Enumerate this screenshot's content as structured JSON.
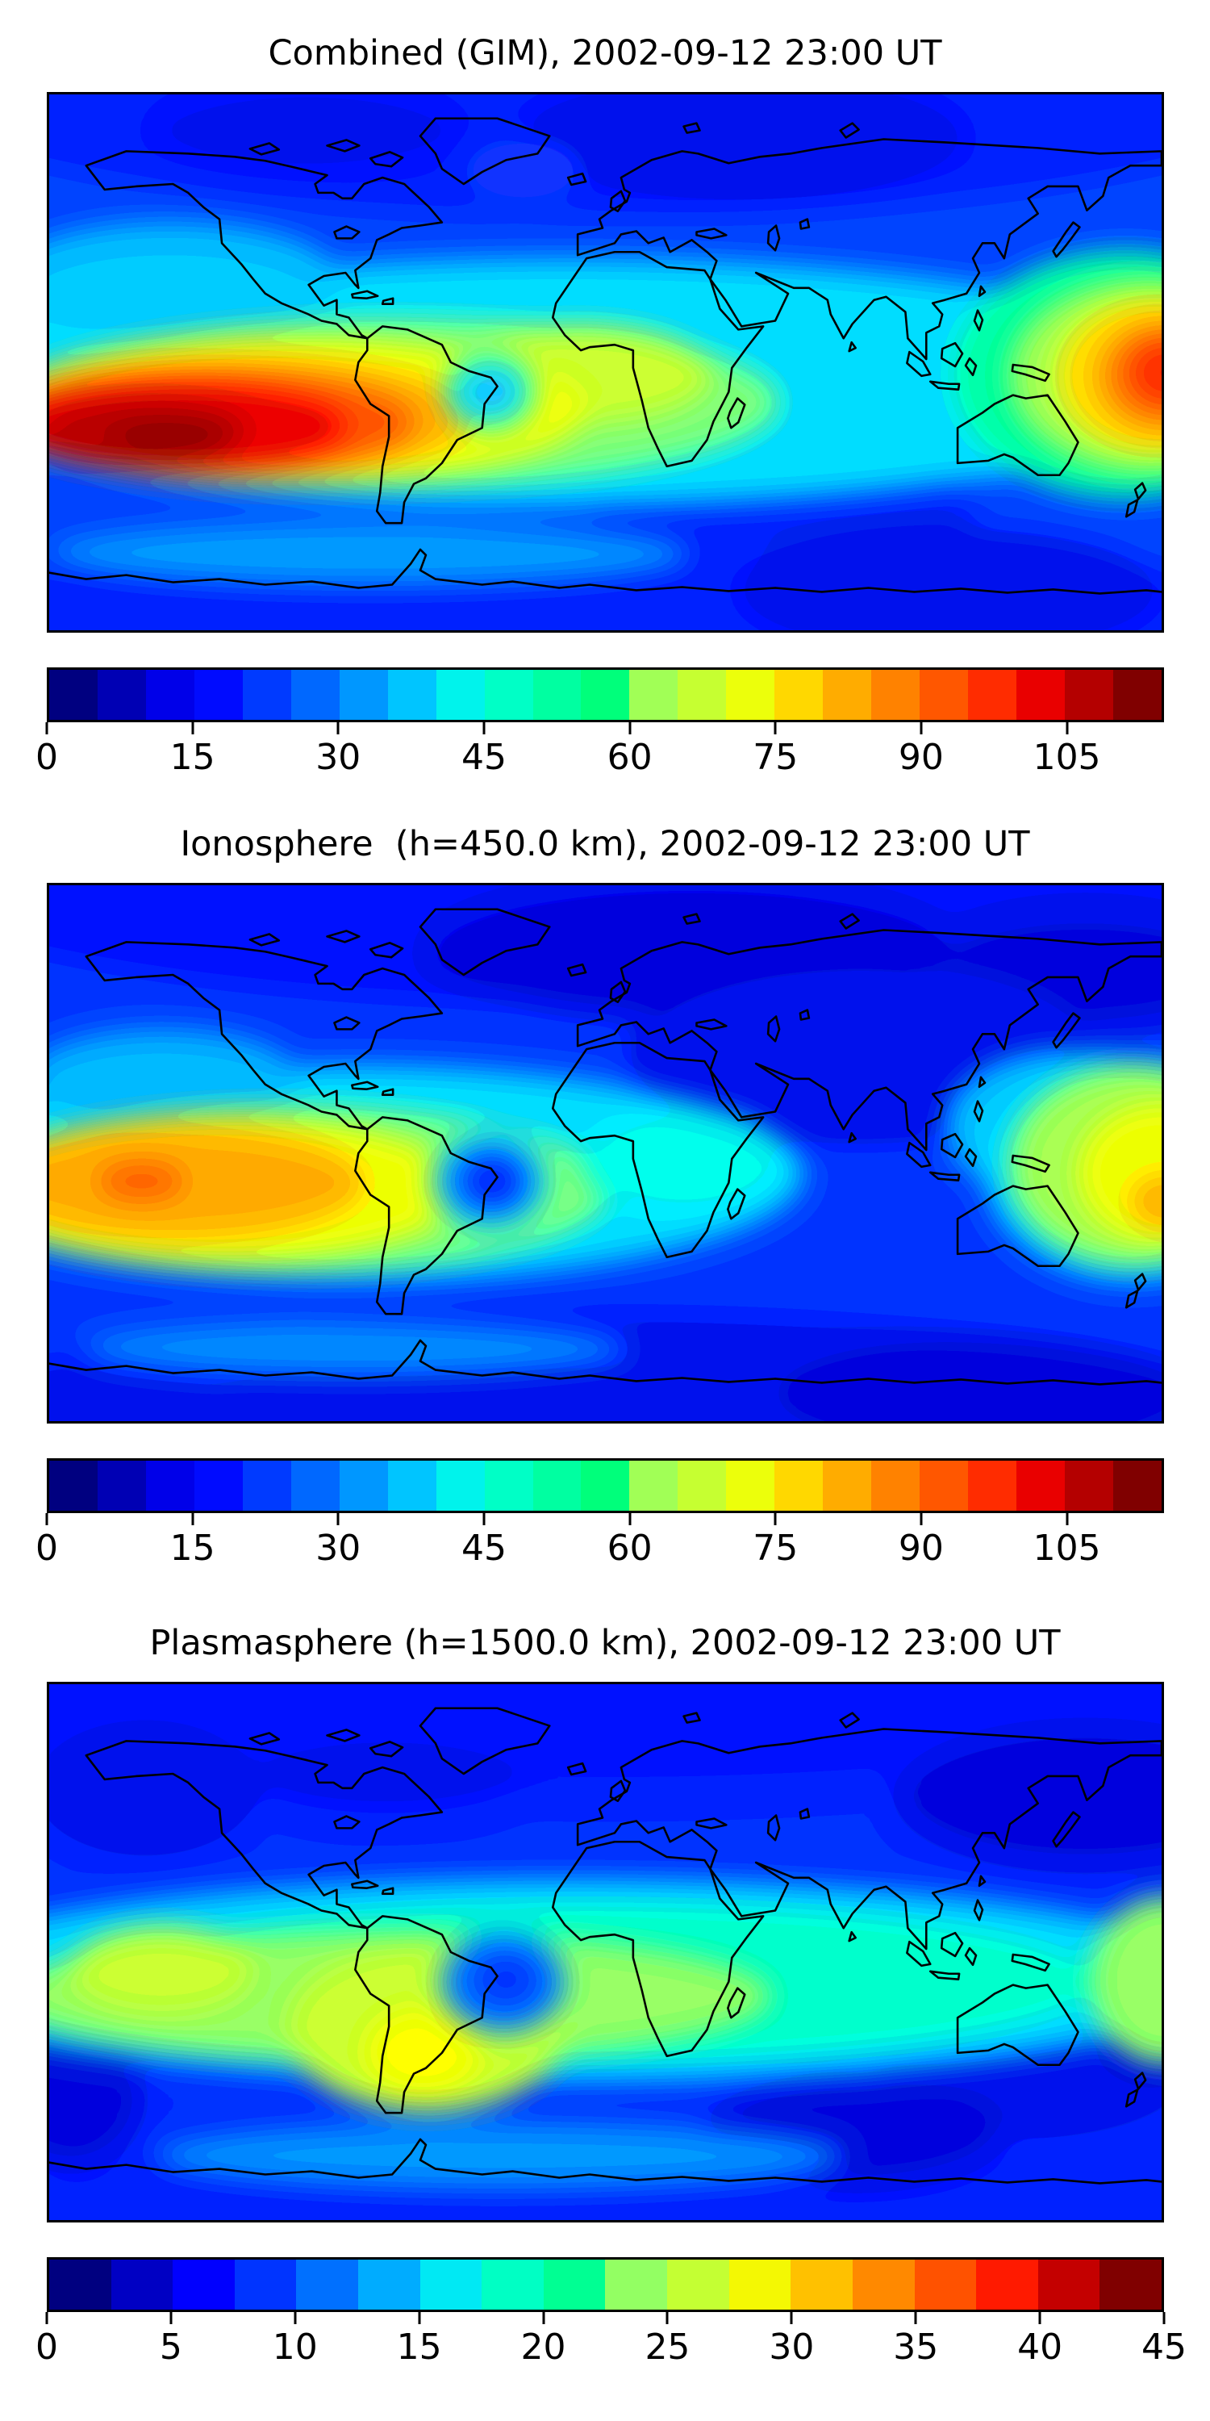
{
  "figure": {
    "background": "#ffffff",
    "description": "Three stacked global TEC contour maps (matplotlib-style) with jet colorbars"
  },
  "panels": [
    {
      "id": "combined",
      "title": "Combined (GIM), 2002-09-12 23:00 UT",
      "colorbar": {
        "vmin": 0,
        "vmax": 115,
        "tick_values": [
          0,
          15,
          30,
          45,
          60,
          75,
          90,
          105
        ],
        "tick_labels": [
          "0",
          "15",
          "30",
          "45",
          "60",
          "75",
          "90",
          "105"
        ],
        "colors": [
          "#000080",
          "#0000B4",
          "#0000E9",
          "#000BFF",
          "#003AFF",
          "#0068FF",
          "#0097FF",
          "#00C5FF",
          "#00F3EC",
          "#00FFC6",
          "#00FFA1",
          "#00FF7B",
          "#A1FF56",
          "#C6FF31",
          "#ECFF0B",
          "#FFD800",
          "#FFAC00",
          "#FF8200",
          "#FF5700",
          "#FF2C00",
          "#E90000",
          "#B40000",
          "#800000"
        ]
      }
    },
    {
      "id": "ionosphere",
      "title": "Ionosphere  (h=450.0 km), 2002-09-12 23:00 UT",
      "colorbar": {
        "vmin": 0,
        "vmax": 115,
        "tick_values": [
          0,
          15,
          30,
          45,
          60,
          75,
          90,
          105
        ],
        "tick_labels": [
          "0",
          "15",
          "30",
          "45",
          "60",
          "75",
          "90",
          "105"
        ],
        "colors": [
          "#000080",
          "#0000B4",
          "#0000E9",
          "#000BFF",
          "#003AFF",
          "#0068FF",
          "#0097FF",
          "#00C5FF",
          "#00F3EC",
          "#00FFC6",
          "#00FFA1",
          "#00FF7B",
          "#A1FF56",
          "#C6FF31",
          "#ECFF0B",
          "#FFD800",
          "#FFAC00",
          "#FF8200",
          "#FF5700",
          "#FF2C00",
          "#E90000",
          "#B40000",
          "#800000"
        ]
      }
    },
    {
      "id": "plasmasphere",
      "title": "Plasmasphere (h=1500.0 km), 2002-09-12 23:00 UT",
      "colorbar": {
        "vmin": 0,
        "vmax": 45,
        "tick_values": [
          0,
          5,
          10,
          15,
          20,
          25,
          30,
          35,
          40,
          45
        ],
        "tick_labels": [
          "0",
          "5",
          "10",
          "15",
          "20",
          "25",
          "30",
          "35",
          "40",
          "45"
        ],
        "colors": [
          "#000080",
          "#0000C4",
          "#0000FF",
          "#0034FF",
          "#0070FF",
          "#00ACFF",
          "#00E9F4",
          "#00FFC4",
          "#00FF93",
          "#93FF63",
          "#C4FF33",
          "#F4F803",
          "#FFC100",
          "#FF8900",
          "#FF5200",
          "#FF1A00",
          "#C40000",
          "#800000"
        ]
      }
    }
  ],
  "chart_data": [
    {
      "type": "heatmap",
      "title": "Combined (GIM), 2002-09-12 23:00 UT",
      "colormap": "jet",
      "projection": "equirectangular world map, lon -180..180, lat 90..-90, black coastlines overlaid, no axis ticks",
      "value_range": [
        0,
        115
      ],
      "contour_level_step": 5,
      "n_color_levels": 23,
      "colorbar_ticks": [
        0,
        15,
        30,
        45,
        60,
        75,
        90,
        105
      ],
      "features": [
        {
          "name": "primary maximum, eastern Pacific",
          "lon": -140,
          "lat": -22,
          "approx_value": 113
        },
        {
          "name": "secondary maximum, far western Pacific at map right edge",
          "lon": 178,
          "lat": -10,
          "approx_value": 95
        },
        {
          "name": "equatorial/low-latitude enhancement band",
          "lat_range": [
            -45,
            5
          ],
          "approx_value": "45-80"
        },
        {
          "name": "local green-yellow enhancement over equatorial Africa",
          "lon": -8,
          "lat": -3,
          "approx_value": 65
        },
        {
          "name": "localized cyan depletion spot near eastern Brazil",
          "lon": -38,
          "lat": -10,
          "approx_value": 38
        },
        {
          "name": "northern high-latitude minimum (dark blue band)",
          "lat_range": [
            50,
            90
          ],
          "approx_value": "5-18"
        },
        {
          "name": "southern high-latitude low band",
          "lat_range": [
            -90,
            -55
          ],
          "approx_value": "10-22"
        }
      ]
    },
    {
      "type": "heatmap",
      "title": "Ionosphere  (h=450.0 km), 2002-09-12 23:00 UT",
      "colormap": "jet",
      "projection": "equirectangular world map, lon -180..180, lat 90..-90, black coastlines overlaid, no axis ticks",
      "value_range": [
        0,
        115
      ],
      "contour_level_step": 5,
      "n_color_levels": 23,
      "colorbar_ticks": [
        0,
        15,
        30,
        45,
        60,
        75,
        90,
        105
      ],
      "features": [
        {
          "name": "primary maximum, eastern Pacific (orange plateau)",
          "lon": -150,
          "lat": -11,
          "approx_value": 88
        },
        {
          "name": "secondary yellow maximum at map right edge near New Guinea",
          "lon": 180,
          "lat": -8,
          "approx_value": 75
        },
        {
          "name": "deep blue depletion vortex near eastern Brazil",
          "lon": -38,
          "lat": -9,
          "approx_value": 15
        },
        {
          "name": "cyan patch over equatorial Africa",
          "lon": 25,
          "lat": -3,
          "approx_value": 45
        },
        {
          "name": "continental Asia minimum (dark blue)",
          "lon": 90,
          "lat": 35,
          "approx_value": 8
        },
        {
          "name": "high-latitude minima north and south",
          "approx_value": "5-15"
        }
      ]
    },
    {
      "type": "heatmap",
      "title": "Plasmasphere (h=1500.0 km), 2002-09-12 23:00 UT",
      "colormap": "jet",
      "projection": "equirectangular world map, lon -180..180, lat 90..-90, black coastlines overlaid, no axis ticks",
      "value_range": [
        0,
        45
      ],
      "contour_level_step": 2.5,
      "n_color_levels": 18,
      "colorbar_ticks": [
        0,
        5,
        10,
        15,
        20,
        25,
        30,
        35,
        40,
        45
      ],
      "features": [
        {
          "name": "yellow maximum over southern South America",
          "lon": -59,
          "lat": -33,
          "approx_value": 30
        },
        {
          "name": "green-cyan equatorial band across full map",
          "lat_range": [
            -40,
            10
          ],
          "approx_value": "15-25"
        },
        {
          "name": "blue dip near eastern Brazil coast",
          "lon": -34,
          "lat": -12,
          "approx_value": 10
        },
        {
          "name": "dark minimum over northeast Asia / NW Pacific",
          "lon": 150,
          "lat": 50,
          "approx_value": 4
        },
        {
          "name": "dark minimum over Australia",
          "lon": 135,
          "lat": -40,
          "approx_value": 5
        },
        {
          "name": "dark minimum south Indian Ocean",
          "lon": 80,
          "lat": -60,
          "approx_value": 5
        },
        {
          "name": "pale green patch west Pacific left edge",
          "lon": -145,
          "lat": -10,
          "approx_value": 22
        }
      ]
    }
  ]
}
